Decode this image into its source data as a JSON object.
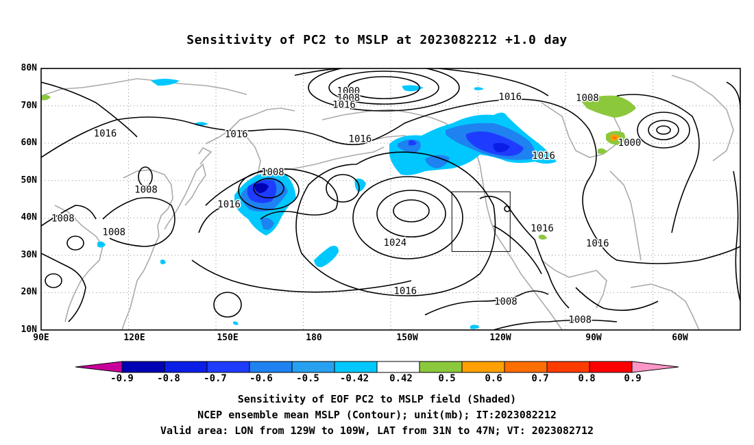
{
  "title": "Sensitivity of PC2 to MSLP at 2023082212 +1.0 day",
  "map": {
    "lat_labels": [
      "80N",
      "70N",
      "60N",
      "50N",
      "40N",
      "30N",
      "20N",
      "10N"
    ],
    "lon_labels": [
      "90E",
      "120E",
      "150E",
      "180",
      "150W",
      "120W",
      "90W",
      "60W"
    ],
    "contour_labels": [
      {
        "text": "1000",
        "lon": 195.5,
        "lat": 74.0
      },
      {
        "text": "1008",
        "lon": 195.5,
        "lat": 72.2
      },
      {
        "text": "1016",
        "lon": 194.0,
        "lat": 70.4
      },
      {
        "text": "1016",
        "lon": 251.0,
        "lat": 72.5
      },
      {
        "text": "1008",
        "lon": 277.5,
        "lat": 72.2
      },
      {
        "text": "1000",
        "lon": 292.0,
        "lat": 60.2
      },
      {
        "text": "1016",
        "lon": 112.0,
        "lat": 62.7
      },
      {
        "text": "1016",
        "lon": 157.0,
        "lat": 62.5
      },
      {
        "text": "1016",
        "lon": 199.5,
        "lat": 61.2
      },
      {
        "text": "1008",
        "lon": 169.5,
        "lat": 52.3
      },
      {
        "text": "1008",
        "lon": 126.0,
        "lat": 47.7
      },
      {
        "text": "1016",
        "lon": 154.5,
        "lat": 43.7
      },
      {
        "text": "1008",
        "lon": 97.5,
        "lat": 40.0
      },
      {
        "text": "1008",
        "lon": 115.0,
        "lat": 36.3
      },
      {
        "text": "1016",
        "lon": 262.5,
        "lat": 56.7
      },
      {
        "text": "1024",
        "lon": 211.5,
        "lat": 33.5
      },
      {
        "text": "1016",
        "lon": 262.0,
        "lat": 37.3
      },
      {
        "text": "1016",
        "lon": 281.0,
        "lat": 33.3
      },
      {
        "text": "1016",
        "lon": 215.0,
        "lat": 20.5
      },
      {
        "text": "1008",
        "lon": 249.5,
        "lat": 17.7
      },
      {
        "text": "1008",
        "lon": 275.0,
        "lat": 12.8
      }
    ],
    "valid_box": {
      "lon_min": 231,
      "lon_max": 251,
      "lat_min": 31,
      "lat_max": 47
    }
  },
  "colorbar": {
    "labels": [
      "-0.9",
      "-0.8",
      "-0.7",
      "-0.6",
      "-0.5",
      "-0.42",
      "0.42",
      "0.5",
      "0.6",
      "0.7",
      "0.8",
      "0.9"
    ],
    "colors": [
      "#c8009b",
      "#0000b4",
      "#0a1ee6",
      "#1e3cff",
      "#1e82f0",
      "#28a0f0",
      "#00c8ff",
      "#ffffff",
      "#8cc83c",
      "#ffa000",
      "#ff6e00",
      "#ff3c00",
      "#ff0000",
      "#ff96c8"
    ]
  },
  "captions": [
    "Sensitivity of EOF PC2 to MSLP field (Shaded)",
    "NCEP ensemble mean MSLP (Contour); unit(mb); IT:2023082212",
    "Valid area: LON from 129W to 109W, LAT from 31N to 47N; VT: 2023082712"
  ]
}
